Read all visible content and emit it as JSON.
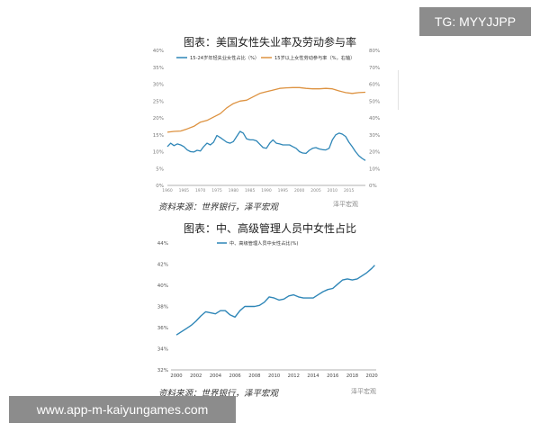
{
  "chart_data": [
    {
      "type": "line",
      "title": "图表：美国女性失业率及劳动参与率",
      "x_labels": [
        "1960",
        "1965",
        "1970",
        "1975",
        "1980",
        "1985",
        "1990",
        "1995",
        "2000",
        "2005",
        "2010",
        "2015"
      ],
      "xlim": [
        1960,
        2020
      ],
      "ylim_left": [
        0,
        40
      ],
      "ylim_right": [
        0,
        80
      ],
      "left_ticks": [
        "0%",
        "5%",
        "10%",
        "15%",
        "20%",
        "25%",
        "30%",
        "35%",
        "40%"
      ],
      "right_ticks": [
        "0%",
        "10%",
        "20%",
        "30%",
        "40%",
        "50%",
        "60%",
        "70%",
        "80%"
      ],
      "series": [
        {
          "name": "15-24岁年轻失业女性占比（%）",
          "axis": "left",
          "color": "#2e86b7",
          "x": [
            1960,
            1961,
            1962,
            1963,
            1964,
            1965,
            1966,
            1967,
            1968,
            1969,
            1970,
            1971,
            1972,
            1973,
            1974,
            1975,
            1976,
            1977,
            1978,
            1979,
            1980,
            1981,
            1982,
            1983,
            1984,
            1985,
            1986,
            1987,
            1988,
            1989,
            1990,
            1991,
            1992,
            1993,
            1994,
            1995,
            1996,
            1997,
            1998,
            1999,
            2000,
            2001,
            2002,
            2003,
            2004,
            2005,
            2006,
            2007,
            2008,
            2009,
            2010,
            2011,
            2012,
            2013,
            2014,
            2015,
            2016,
            2017,
            2018,
            2019,
            2020
          ],
          "values": [
            11.5,
            12.5,
            11.8,
            12.3,
            12.0,
            11.5,
            10.5,
            10.0,
            9.9,
            10.4,
            10.2,
            11.5,
            12.5,
            12.0,
            12.8,
            14.8,
            14.2,
            13.5,
            12.8,
            12.5,
            13.0,
            14.5,
            16.0,
            15.5,
            13.8,
            13.5,
            13.5,
            13.2,
            12.2,
            11.2,
            11.0,
            12.5,
            13.5,
            12.5,
            12.3,
            12.0,
            12.0,
            12.0,
            11.5,
            11.0,
            10.0,
            9.6,
            9.5,
            10.4,
            11.0,
            11.2,
            10.8,
            10.6,
            10.5,
            11.0,
            13.5,
            15.0,
            15.5,
            15.2,
            14.5,
            12.8,
            11.5,
            10.0,
            8.8,
            8.0,
            7.4
          ]
        },
        {
          "name": "15岁以上女性劳动参与率（%，右轴）",
          "axis": "right",
          "color": "#dd9240",
          "x": [
            1960,
            1962,
            1964,
            1966,
            1968,
            1970,
            1972,
            1974,
            1976,
            1978,
            1980,
            1982,
            1984,
            1986,
            1988,
            1990,
            1992,
            1994,
            1996,
            1998,
            2000,
            2002,
            2004,
            2006,
            2008,
            2010,
            2012,
            2014,
            2016,
            2018,
            2020
          ],
          "values": [
            31.5,
            32,
            32.2,
            33.5,
            35,
            37.5,
            38.5,
            40.5,
            42.5,
            46,
            48.5,
            50,
            50.5,
            52.5,
            54.5,
            55.5,
            56.5,
            57.5,
            57.8,
            58,
            58,
            57.5,
            57.2,
            57.2,
            57.5,
            57.2,
            56,
            55,
            54.5,
            55,
            55.2
          ]
        }
      ]
    },
    {
      "type": "line",
      "title": "图表：中、高级管理人员中女性占比",
      "x_labels": [
        "2000",
        "2002",
        "2004",
        "2006",
        "2008",
        "2010",
        "2012",
        "2014",
        "2016",
        "2018",
        "2020"
      ],
      "xlim": [
        2000,
        2021
      ],
      "ylim": [
        32,
        44
      ],
      "y_ticks": [
        "32%",
        "34%",
        "36%",
        "38%",
        "40%",
        "42%",
        "44%"
      ],
      "series": [
        {
          "name": "中、高级管理人员中女性占比(%)",
          "color": "#2e86b7",
          "x": [
            2000,
            2000.5,
            2001,
            2001.5,
            2002,
            2002.5,
            2003,
            2003.5,
            2004,
            2004.5,
            2005,
            2005.5,
            2006,
            2006.5,
            2007,
            2007.5,
            2008,
            2008.5,
            2009,
            2009.5,
            2010,
            2010.5,
            2011,
            2011.5,
            2012,
            2012.5,
            2013,
            2013.5,
            2014,
            2014.5,
            2015,
            2015.5,
            2016,
            2016.5,
            2017,
            2017.5,
            2018,
            2018.5,
            2019,
            2019.5,
            2020,
            2020.3
          ],
          "values": [
            35.3,
            35.6,
            35.9,
            36.2,
            36.6,
            37.1,
            37.5,
            37.4,
            37.3,
            37.6,
            37.6,
            37.2,
            37.0,
            37.6,
            38.0,
            38.0,
            38.0,
            38.1,
            38.4,
            38.9,
            38.8,
            38.6,
            38.7,
            39.0,
            39.1,
            38.9,
            38.8,
            38.8,
            38.8,
            39.1,
            39.4,
            39.6,
            39.7,
            40.1,
            40.5,
            40.6,
            40.5,
            40.6,
            40.9,
            41.2,
            41.6,
            41.9
          ]
        }
      ]
    }
  ],
  "sources": {
    "top": "资料来源：世界银行，泽平宏观",
    "bottom": "资料来源：世界银行，泽平宏观"
  },
  "logo_text": "泽平宏观",
  "overlays": {
    "tg": "TG: MYYJJPP",
    "url": "www.app-m-kaiyungames.com"
  }
}
